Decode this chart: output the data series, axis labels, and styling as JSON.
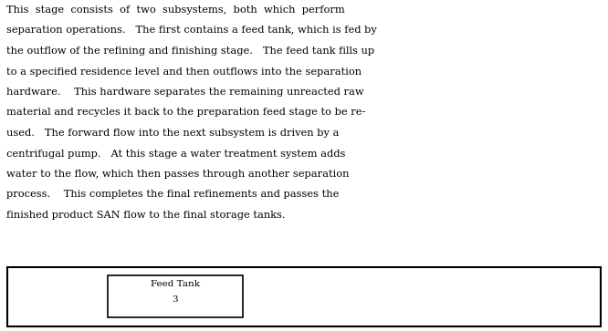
{
  "text_lines": [
    "This  stage  consists  of  two  subsystems,  both  which  perform",
    "separation operations.   The first contains a feed tank, which is fed by",
    "the outflow of the refining and finishing stage.   The feed tank fills up",
    "to a specified residence level and then outflows into the separation",
    "hardware.    This hardware separates the remaining unreacted raw",
    "material and recycles it back to the preparation feed stage to be re-",
    "used.   The forward flow into the next subsystem is driven by a",
    "centrifugal pump.   At this stage a water treatment system adds",
    "water to the flow, which then passes through another separation",
    "process.    This completes the final refinements and passes the",
    "finished product SAN flow to the final storage tanks."
  ],
  "text_color": "#000000",
  "background_color": "#ffffff",
  "box_color": "#000000",
  "feed_tank_label": "Feed Tank",
  "feed_tank_number": "3"
}
